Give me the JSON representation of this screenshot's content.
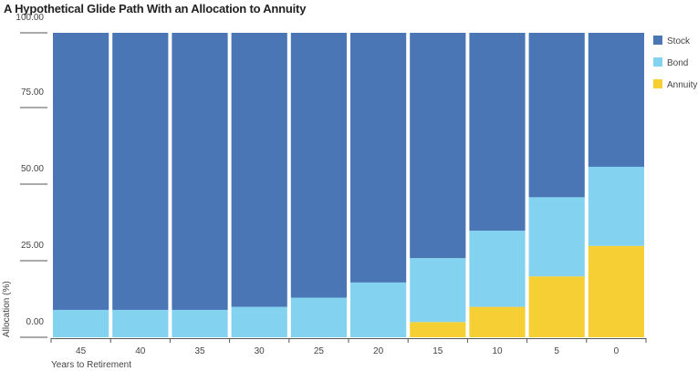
{
  "chart_data": {
    "type": "bar",
    "stacked": true,
    "title": "A Hypothetical Glide Path With an Allocation to Annuity",
    "xlabel": "Years to Retirement",
    "ylabel": "Allocation (%)",
    "categories": [
      "45",
      "40",
      "35",
      "30",
      "25",
      "20",
      "15",
      "10",
      "5",
      "0"
    ],
    "y_tick_labels": [
      "0.00",
      "25.00",
      "50.00",
      "75.00",
      "100.00"
    ],
    "ylim": [
      0,
      100
    ],
    "grid": false,
    "legend_position": "right",
    "series": [
      {
        "name": "Annuity",
        "color": "#f5cf33",
        "values": [
          0,
          0,
          0,
          0,
          0,
          0,
          5,
          10,
          20,
          30
        ]
      },
      {
        "name": "Bond",
        "color": "#83d2ef",
        "values": [
          9,
          9,
          9,
          10,
          13,
          18,
          21,
          25,
          26,
          26
        ]
      },
      {
        "name": "Stock",
        "color": "#4a76b6",
        "values": [
          91,
          91,
          91,
          90,
          87,
          82,
          74,
          65,
          54,
          44
        ]
      }
    ],
    "legend_order": [
      "Stock",
      "Bond",
      "Annuity"
    ]
  }
}
